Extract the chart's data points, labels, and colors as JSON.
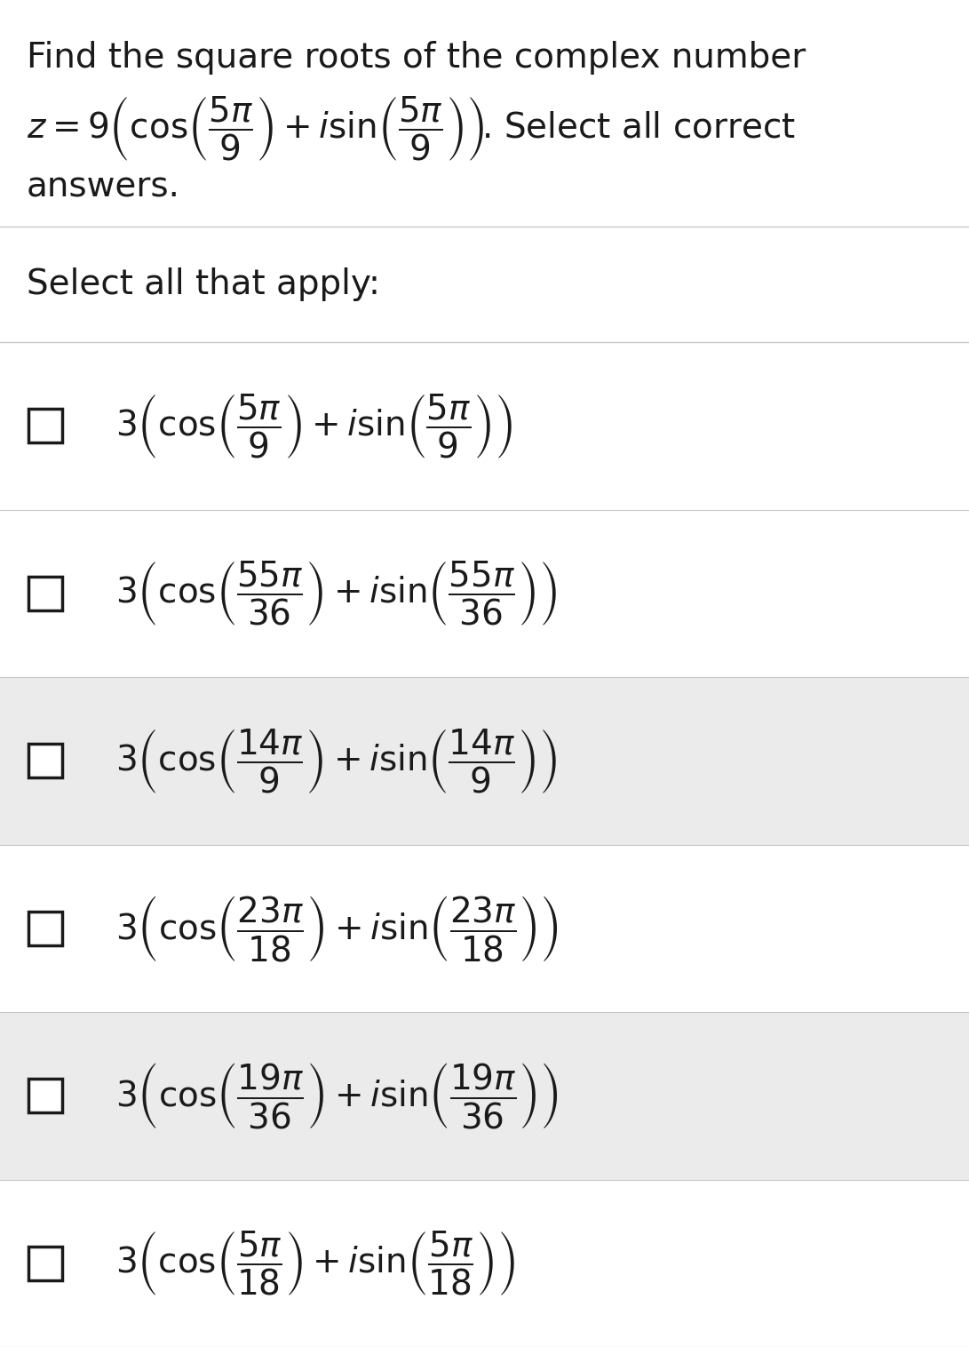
{
  "bg_color": "#ffffff",
  "header_line1": "Find the square roots of the complex number",
  "header_line2": "$z = 9 \\left(\\cos\\!\\left(\\dfrac{5\\pi}{9}\\right) + i\\sin\\!\\left(\\dfrac{5\\pi}{9}\\right)\\right)\\!$. Select all correct",
  "header_line3": "answers.",
  "select_label": "Select all that apply:",
  "options": [
    "$3 \\left(\\cos\\!\\left(\\dfrac{5\\pi}{9}\\right) + i\\sin\\!\\left(\\dfrac{5\\pi}{9}\\right)\\right)$",
    "$3 \\left(\\cos\\!\\left(\\dfrac{55\\pi}{36}\\right) + i\\sin\\!\\left(\\dfrac{55\\pi}{36}\\right)\\right)$",
    "$3 \\left(\\cos\\!\\left(\\dfrac{14\\pi}{9}\\right) + i\\sin\\!\\left(\\dfrac{14\\pi}{9}\\right)\\right)$",
    "$3 \\left(\\cos\\!\\left(\\dfrac{23\\pi}{18}\\right) + i\\sin\\!\\left(\\dfrac{23\\pi}{18}\\right)\\right)$",
    "$3 \\left(\\cos\\!\\left(\\dfrac{19\\pi}{36}\\right) + i\\sin\\!\\left(\\dfrac{19\\pi}{36}\\right)\\right)$",
    "$3 \\left(\\cos\\!\\left(\\dfrac{5\\pi}{18}\\right) + i\\sin\\!\\left(\\dfrac{5\\pi}{18}\\right)\\right)$"
  ],
  "row_bg_colors": [
    "#ffffff",
    "#ffffff",
    "#ebebeb",
    "#ffffff",
    "#ebebeb",
    "#ffffff"
  ],
  "header_fontsize": 28,
  "option_fontsize": 28,
  "select_fontsize": 28,
  "text_color": "#1a1a1a",
  "line_color": "#c8c8c8",
  "checkbox_linewidth": 2.5
}
